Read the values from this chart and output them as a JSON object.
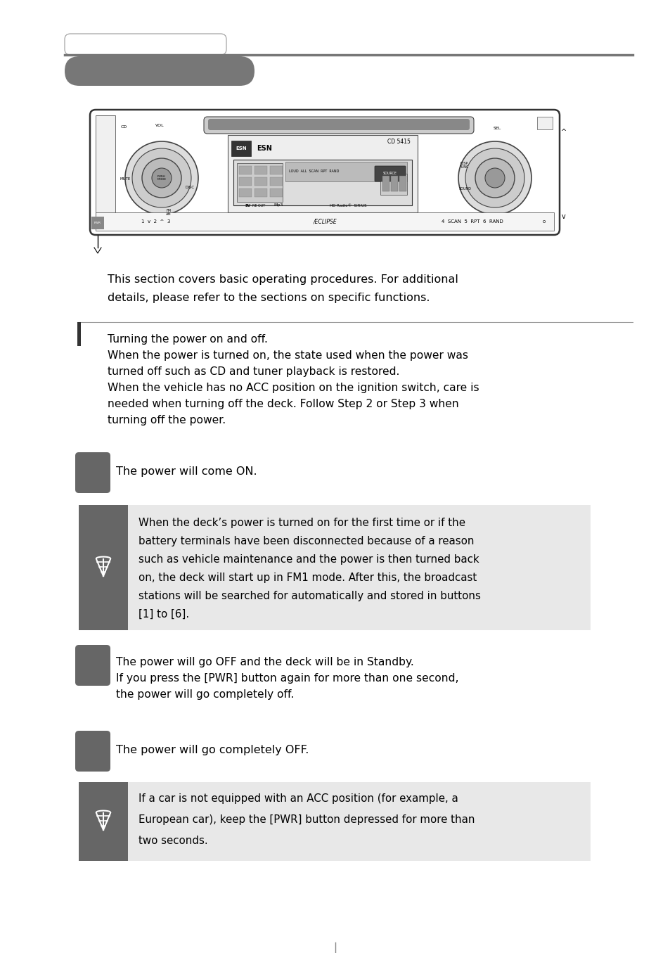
{
  "bg_color": "#ffffff",
  "tab_bg_color": "#777777",
  "step_button_color": "#666666",
  "note_bg_color": "#e8e8e8",
  "note_icon_bg_color": "#666666",
  "intro_text_line1": "This section covers basic operating procedures. For additional",
  "intro_text_line2": "details, please refer to the sections on specific functions.",
  "sec_lines": [
    "Turning the power on and off.",
    "When the power is turned on, the state used when the power was",
    "turned off such as CD and tuner playback is restored.",
    "When the vehicle has no ACC position on the ignition switch, care is",
    "needed when turning off the deck. Follow Step 2 or Step 3 when",
    "turning off the power."
  ],
  "step1_text": "The power will come ON.",
  "note1_lines": [
    "When the deck’s power is turned on for the first time or if the",
    "battery terminals have been disconnected because of a reason",
    "such as vehicle maintenance and the power is then turned back",
    "on, the deck will start up in FM1 mode. After this, the broadcast",
    "stations will be searched for automatically and stored in buttons",
    "[1] to [6]."
  ],
  "step2_lines": [
    "The power will go OFF and the deck will be in Standby.",
    "If you press the [PWR] button again for more than one second,",
    "the power will go completely off."
  ],
  "step3_text": "The power will go completely OFF.",
  "note2_lines": [
    "If a car is not equipped with an ACC position (for example, a",
    "European car), keep the [PWR] button depressed for more than",
    "two seconds."
  ]
}
